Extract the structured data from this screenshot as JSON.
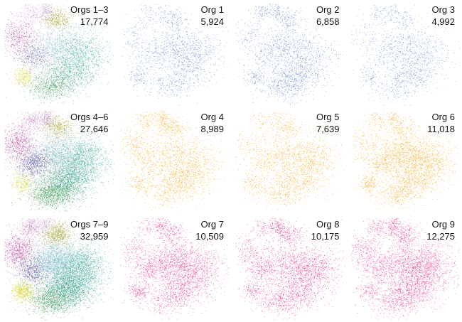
{
  "figure": {
    "background": "#ffffff",
    "text_color": "#161616"
  },
  "chart_data": {
    "type": "scatter",
    "title": "",
    "subtitle": "",
    "xlabel": "",
    "ylabel": "",
    "grid": {
      "rows": 3,
      "cols": 4,
      "axes": "none",
      "legend": "none"
    },
    "description": "3x4 grid of UMAP-style single-cell scatter panels. Left column shows combined organoid groups colored by cluster; remaining columns show individual organoids in a single row color.",
    "row_colors": {
      "row1_mono": "#587fc0",
      "row2_mono": "#f2a81d",
      "row3_mono": "#e42f86"
    },
    "cluster_palette": [
      "#cd93ce",
      "#bf3f9e",
      "#c7a6c9",
      "#a6a432",
      "#8ec9de",
      "#45b09b",
      "#5f57a6",
      "#d9dc3e",
      "#419b4f",
      "#35a184",
      "#b9b3ae"
    ],
    "clusters": [
      {
        "id": "orchid-top",
        "cx": 0.26,
        "cy": 0.1,
        "sx": 0.055,
        "sy": 0.048,
        "w": 0.035,
        "color": "#cd93ce"
      },
      {
        "id": "magenta-left",
        "cx": 0.14,
        "cy": 0.33,
        "sx": 0.075,
        "sy": 0.085,
        "w": 0.06,
        "color": "#bf3f9e"
      },
      {
        "id": "top-spur",
        "cx": 0.4,
        "cy": 0.08,
        "sx": 0.035,
        "sy": 0.055,
        "w": 0.03,
        "color": "#c7a6c9"
      },
      {
        "id": "olive-top",
        "cx": 0.5,
        "cy": 0.17,
        "sx": 0.065,
        "sy": 0.055,
        "w": 0.055,
        "color": "#a6a432"
      },
      {
        "id": "lightblue-mid",
        "cx": 0.46,
        "cy": 0.42,
        "sx": 0.105,
        "sy": 0.085,
        "w": 0.11,
        "color": "#8ec9de"
      },
      {
        "id": "teal-right",
        "cx": 0.7,
        "cy": 0.5,
        "sx": 0.13,
        "sy": 0.12,
        "w": 0.24,
        "color": "#45b09b"
      },
      {
        "id": "purple-left",
        "cx": 0.28,
        "cy": 0.52,
        "sx": 0.075,
        "sy": 0.065,
        "w": 0.07,
        "color": "#5f57a6"
      },
      {
        "id": "yellow-left",
        "cx": 0.18,
        "cy": 0.72,
        "sx": 0.055,
        "sy": 0.05,
        "w": 0.045,
        "color": "#d9dc3e"
      },
      {
        "id": "green-bottom",
        "cx": 0.44,
        "cy": 0.82,
        "sx": 0.11,
        "sy": 0.065,
        "w": 0.1,
        "color": "#419b4f"
      },
      {
        "id": "teal-lower",
        "cx": 0.58,
        "cy": 0.7,
        "sx": 0.12,
        "sy": 0.09,
        "w": 0.155,
        "color": "#35a184"
      },
      {
        "id": "mixed-noise",
        "cx": 0.45,
        "cy": 0.48,
        "sx": 0.2,
        "sy": 0.19,
        "w": 0.1,
        "color": "#b9b3ae"
      }
    ],
    "panels": [
      {
        "label": "Orgs 1–3",
        "count": "17,774",
        "count_value": 17774,
        "mode": "combined",
        "color": null,
        "row": 1,
        "col": 1
      },
      {
        "label": "Org 1",
        "count": "5,924",
        "count_value": 5924,
        "mode": "mono",
        "color": "#587fc0",
        "row": 1,
        "col": 2
      },
      {
        "label": "Org 2",
        "count": "6,858",
        "count_value": 6858,
        "mode": "mono",
        "color": "#587fc0",
        "row": 1,
        "col": 3
      },
      {
        "label": "Org 3",
        "count": "4,992",
        "count_value": 4992,
        "mode": "mono",
        "color": "#587fc0",
        "row": 1,
        "col": 4
      },
      {
        "label": "Orgs 4–6",
        "count": "27,646",
        "count_value": 27646,
        "mode": "combined",
        "color": null,
        "row": 2,
        "col": 1
      },
      {
        "label": "Org 4",
        "count": "8,989",
        "count_value": 8989,
        "mode": "mono",
        "color": "#f2a81d",
        "row": 2,
        "col": 2
      },
      {
        "label": "Org 5",
        "count": "7,639",
        "count_value": 7639,
        "mode": "mono",
        "color": "#f2a81d",
        "row": 2,
        "col": 3
      },
      {
        "label": "Org 6",
        "count": "11,018",
        "count_value": 11018,
        "mode": "mono",
        "color": "#f2a81d",
        "row": 2,
        "col": 4
      },
      {
        "label": "Orgs 7–9",
        "count": "32,959",
        "count_value": 32959,
        "mode": "combined",
        "color": null,
        "row": 3,
        "col": 1
      },
      {
        "label": "Org 7",
        "count": "10,509",
        "count_value": 10509,
        "mode": "mono",
        "color": "#e42f86",
        "row": 3,
        "col": 2
      },
      {
        "label": "Org 8",
        "count": "10,175",
        "count_value": 10175,
        "mode": "mono",
        "color": "#e42f86",
        "row": 3,
        "col": 3
      },
      {
        "label": "Org 9",
        "count": "12,275",
        "count_value": 12275,
        "mode": "mono",
        "color": "#e42f86",
        "row": 3,
        "col": 4
      }
    ]
  }
}
